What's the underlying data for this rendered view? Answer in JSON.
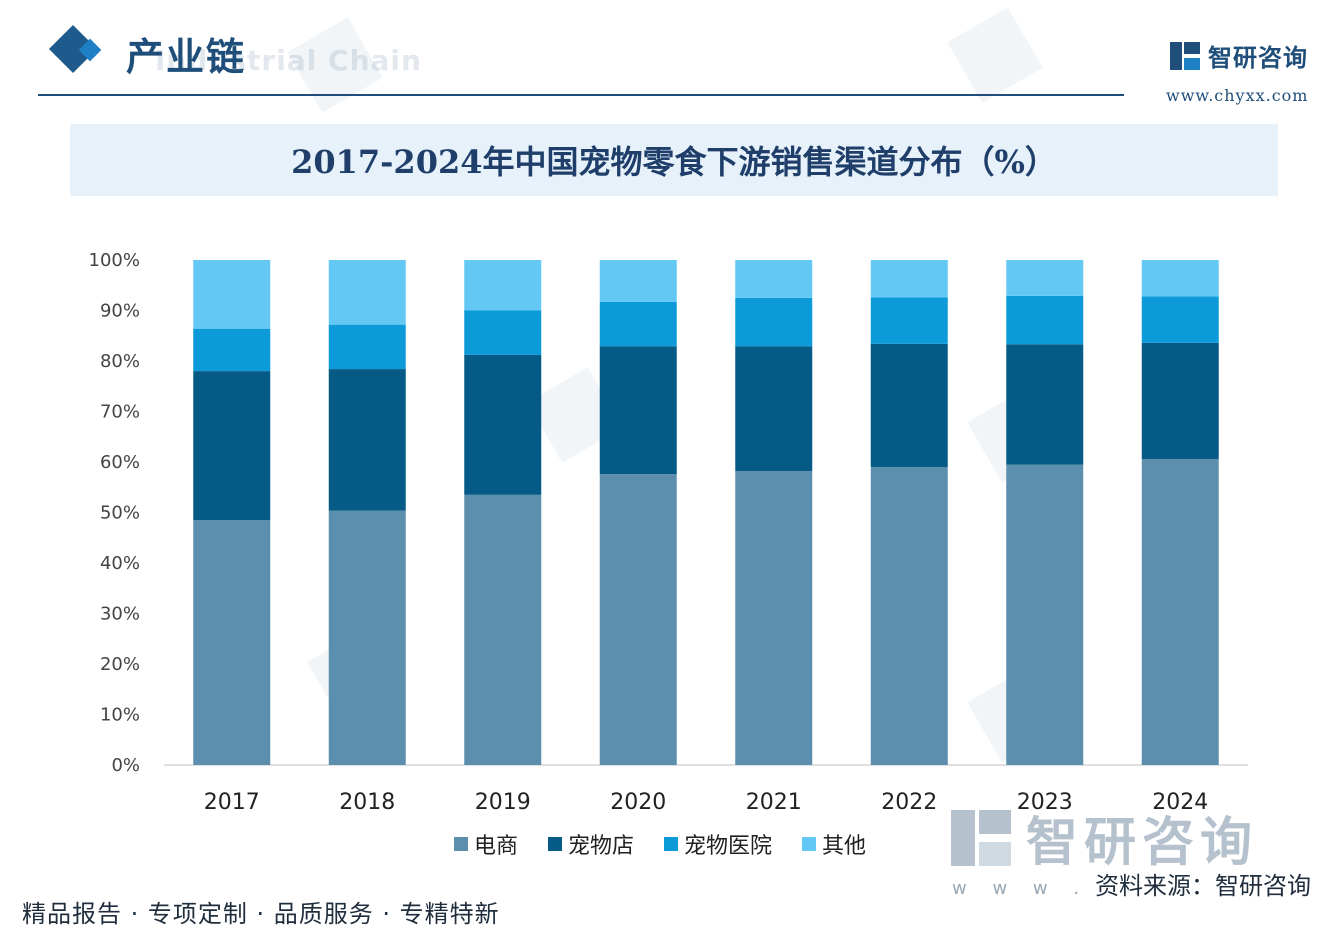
{
  "header": {
    "section_title": "产业链",
    "section_subtitle": "Industrial Chain",
    "brand_name": "智研咨询",
    "brand_url": "www.chyxx.com"
  },
  "chart_data": {
    "type": "bar",
    "stacked": true,
    "title": "2017-2024年中国宠物零食下游销售渠道分布（%）",
    "categories": [
      "2017",
      "2018",
      "2019",
      "2020",
      "2021",
      "2022",
      "2023",
      "2024"
    ],
    "series": [
      {
        "name": "电商",
        "color": "#5b8fad",
        "values": [
          48.5,
          50.4,
          53.5,
          57.6,
          58.2,
          59.0,
          59.5,
          60.6
        ]
      },
      {
        "name": "宠物店",
        "color": "#065b86",
        "values": [
          29.5,
          28.0,
          27.7,
          25.3,
          24.7,
          24.4,
          23.8,
          23.0
        ]
      },
      {
        "name": "宠物医院",
        "color": "#0c9ad8",
        "values": [
          8.4,
          8.8,
          8.8,
          8.8,
          9.6,
          9.2,
          9.6,
          9.2
        ]
      },
      {
        "name": "其他",
        "color": "#63c8f3",
        "values": [
          13.6,
          12.8,
          10.0,
          8.3,
          7.5,
          7.4,
          7.1,
          7.2
        ]
      }
    ],
    "y_ticks": [
      "0%",
      "10%",
      "20%",
      "30%",
      "40%",
      "50%",
      "60%",
      "70%",
      "80%",
      "90%",
      "100%"
    ],
    "ylim": [
      0,
      100
    ],
    "grid": false,
    "legend_position": "bottom"
  },
  "footer": {
    "big_brand": "智研咨询",
    "source_dots": "w w w .",
    "source_text": "资料来源：智研咨询",
    "slogan": "精品报告 · 专项定制 · 品质服务 · 专精特新"
  }
}
